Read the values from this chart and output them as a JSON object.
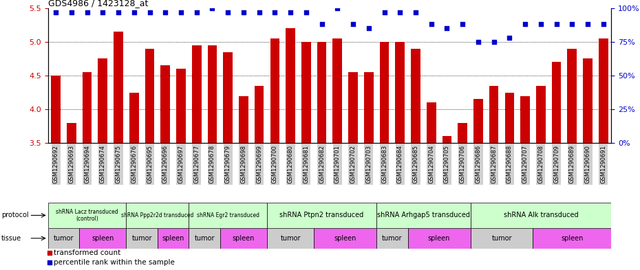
{
  "title": "GDS4986 / 1423128_at",
  "bar_color": "#cc0000",
  "dot_color": "#0000cc",
  "ylim": [
    3.5,
    5.5
  ],
  "right_ylim": [
    0,
    100
  ],
  "yticks_left": [
    3.5,
    4.0,
    4.5,
    5.0,
    5.5
  ],
  "yticks_right": [
    0,
    25,
    50,
    75,
    100
  ],
  "samples": [
    "GSM1290692",
    "GSM1290693",
    "GSM1290694",
    "GSM1290674",
    "GSM1290675",
    "GSM1290676",
    "GSM1290695",
    "GSM1290696",
    "GSM1290697",
    "GSM1290677",
    "GSM1290678",
    "GSM1290679",
    "GSM1290698",
    "GSM1290699",
    "GSM1290700",
    "GSM1290680",
    "GSM1290681",
    "GSM1290682",
    "GSM1290701",
    "GSM1290702",
    "GSM1290703",
    "GSM1290683",
    "GSM1290684",
    "GSM1290685",
    "GSM1290704",
    "GSM1290705",
    "GSM1290706",
    "GSM1290686",
    "GSM1290687",
    "GSM1290688",
    "GSM1290707",
    "GSM1290708",
    "GSM1290709",
    "GSM1290689",
    "GSM1290690",
    "GSM1290691"
  ],
  "bar_values": [
    4.5,
    3.8,
    4.55,
    4.75,
    5.15,
    4.25,
    4.9,
    4.65,
    4.6,
    4.95,
    4.95,
    4.85,
    4.2,
    4.35,
    5.05,
    5.2,
    5.0,
    5.0,
    5.05,
    4.55,
    4.55,
    5.0,
    5.0,
    4.9,
    4.1,
    3.6,
    3.8,
    4.15,
    4.35,
    4.25,
    4.2,
    4.35,
    4.7,
    4.9,
    4.75,
    5.05
  ],
  "dot_values_pct": [
    97,
    97,
    97,
    97,
    97,
    97,
    97,
    97,
    97,
    97,
    100,
    97,
    97,
    97,
    97,
    97,
    97,
    88,
    100,
    88,
    85,
    97,
    97,
    97,
    88,
    85,
    88,
    75,
    75,
    78,
    88,
    88,
    88,
    88,
    88,
    88
  ],
  "protocols": [
    {
      "label": "shRNA Lacz transduced\n(control)",
      "start": 0,
      "end": 5,
      "color": "#ccffcc"
    },
    {
      "label": "shRNA Ppp2r2d transduced",
      "start": 5,
      "end": 9,
      "color": "#ccffcc"
    },
    {
      "label": "shRNA Egr2 transduced",
      "start": 9,
      "end": 14,
      "color": "#ccffcc"
    },
    {
      "label": "shRNA Ptpn2 transduced",
      "start": 14,
      "end": 21,
      "color": "#ccffcc"
    },
    {
      "label": "shRNA Arhgap5 transduced",
      "start": 21,
      "end": 27,
      "color": "#ccffcc"
    },
    {
      "label": "shRNA Alk transduced",
      "start": 27,
      "end": 36,
      "color": "#ccffcc"
    }
  ],
  "tissues": [
    {
      "label": "tumor",
      "start": 0,
      "end": 2,
      "color": "#cccccc"
    },
    {
      "label": "spleen",
      "start": 2,
      "end": 5,
      "color": "#ee66ee"
    },
    {
      "label": "tumor",
      "start": 5,
      "end": 7,
      "color": "#cccccc"
    },
    {
      "label": "spleen",
      "start": 7,
      "end": 9,
      "color": "#ee66ee"
    },
    {
      "label": "tumor",
      "start": 9,
      "end": 11,
      "color": "#cccccc"
    },
    {
      "label": "spleen",
      "start": 11,
      "end": 14,
      "color": "#ee66ee"
    },
    {
      "label": "tumor",
      "start": 14,
      "end": 17,
      "color": "#cccccc"
    },
    {
      "label": "spleen",
      "start": 17,
      "end": 21,
      "color": "#ee66ee"
    },
    {
      "label": "tumor",
      "start": 21,
      "end": 23,
      "color": "#cccccc"
    },
    {
      "label": "spleen",
      "start": 23,
      "end": 27,
      "color": "#ee66ee"
    },
    {
      "label": "tumor",
      "start": 27,
      "end": 31,
      "color": "#cccccc"
    },
    {
      "label": "spleen",
      "start": 31,
      "end": 36,
      "color": "#ee66ee"
    }
  ],
  "tick_label_bg": "#d0d0d0",
  "protocol_font_large": 7,
  "protocol_font_small": 5.5
}
